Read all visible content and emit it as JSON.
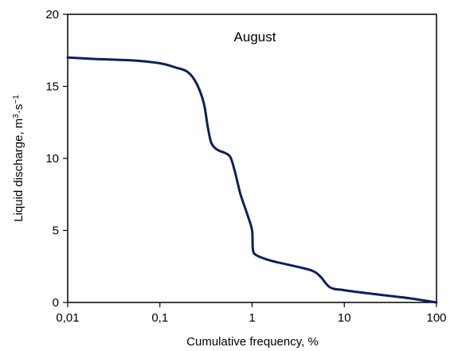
{
  "chart_data": {
    "type": "line",
    "title": "",
    "annotation": "August",
    "xlabel": "Cumulative frequency, %",
    "ylabel_main": "Liquid discharge, m",
    "ylabel_sup1": "3",
    "ylabel_mid": "·s",
    "ylabel_sup2": "−1",
    "x_scale": "log",
    "xlim": [
      0.01,
      100
    ],
    "ylim": [
      0,
      20
    ],
    "x_ticks": [
      0.01,
      0.1,
      1,
      10,
      100
    ],
    "x_tick_labels": [
      "0,01",
      "0,1",
      "1",
      "10",
      "100"
    ],
    "y_ticks": [
      0,
      5,
      10,
      15,
      20
    ],
    "y_tick_labels": [
      "0",
      "5",
      "10",
      "15",
      "20"
    ],
    "grid": false,
    "line_color": "#0d1f5c",
    "series": [
      {
        "x": [
          0.01,
          0.02,
          0.05,
          0.1,
          0.15,
          0.2,
          0.25,
          0.3,
          0.33,
          0.36,
          0.4,
          0.45,
          0.5,
          0.58,
          0.65,
          0.75,
          0.9,
          1.0,
          1.02,
          1.1,
          1.5,
          2,
          3,
          4.5,
          5.5,
          7,
          10,
          20,
          50,
          100
        ],
        "y": [
          17.0,
          16.9,
          16.8,
          16.6,
          16.3,
          16.0,
          15.2,
          13.8,
          12.2,
          11.1,
          10.7,
          10.5,
          10.4,
          10.1,
          9.1,
          7.5,
          6.0,
          5.0,
          3.7,
          3.3,
          2.95,
          2.75,
          2.5,
          2.2,
          1.8,
          1.05,
          0.85,
          0.6,
          0.3,
          0.0
        ]
      }
    ]
  }
}
